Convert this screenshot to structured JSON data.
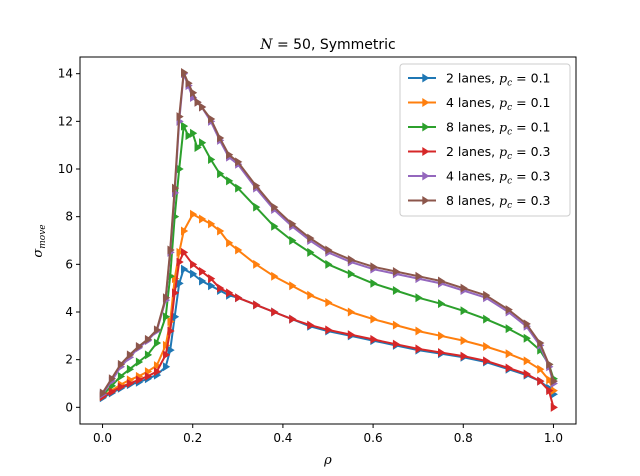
{
  "chart_data": {
    "type": "line",
    "title": "N = 50, Symmetric",
    "xlabel": "ρ",
    "ylabel": "σmove",
    "xlim": [
      -0.05,
      1.05
    ],
    "ylim": [
      -0.7,
      14.7
    ],
    "xticks": [
      0.0,
      0.2,
      0.4,
      0.6,
      0.8,
      1.0
    ],
    "xtick_labels": [
      "0.0",
      "0.2",
      "0.4",
      "0.6",
      "0.8",
      "1.0"
    ],
    "yticks": [
      0,
      2,
      4,
      6,
      8,
      10,
      12,
      14
    ],
    "ytick_labels": [
      "0",
      "2",
      "4",
      "6",
      "8",
      "10",
      "12",
      "14"
    ],
    "grid": false,
    "legend_position": "top-right",
    "marker": "triangle-right",
    "series": [
      {
        "name": "2 lanes, pc = 0.1",
        "name_main": "2 lanes, ",
        "name_sub": "c",
        "name_tail": " = 0.1",
        "color": "#1f77b4",
        "x": [
          0.0,
          0.02,
          0.04,
          0.06,
          0.08,
          0.1,
          0.12,
          0.14,
          0.15,
          0.16,
          0.17,
          0.18,
          0.2,
          0.22,
          0.24,
          0.26,
          0.28,
          0.3,
          0.34,
          0.38,
          0.42,
          0.46,
          0.5,
          0.55,
          0.6,
          0.65,
          0.7,
          0.75,
          0.8,
          0.85,
          0.9,
          0.94,
          0.97,
          0.99,
          1.0
        ],
        "y": [
          0.4,
          0.6,
          0.8,
          0.95,
          1.05,
          1.2,
          1.35,
          1.7,
          2.4,
          3.8,
          5.2,
          5.8,
          5.6,
          5.3,
          5.1,
          4.9,
          4.7,
          4.6,
          4.3,
          4.0,
          3.7,
          3.4,
          3.2,
          3.0,
          2.8,
          2.6,
          2.4,
          2.25,
          2.1,
          1.9,
          1.6,
          1.35,
          1.1,
          0.8,
          0.55
        ]
      },
      {
        "name": "4 lanes, pc = 0.1",
        "name_main": "4 lanes, ",
        "name_sub": "c",
        "name_tail": " = 0.1",
        "color": "#ff7f0e",
        "x": [
          0.0,
          0.02,
          0.04,
          0.06,
          0.08,
          0.1,
          0.12,
          0.14,
          0.15,
          0.16,
          0.17,
          0.18,
          0.2,
          0.22,
          0.24,
          0.26,
          0.28,
          0.3,
          0.34,
          0.38,
          0.42,
          0.46,
          0.5,
          0.55,
          0.6,
          0.65,
          0.7,
          0.75,
          0.8,
          0.85,
          0.9,
          0.94,
          0.97,
          0.99,
          1.0
        ],
        "y": [
          0.45,
          0.7,
          0.95,
          1.15,
          1.3,
          1.5,
          1.75,
          2.6,
          3.6,
          5.4,
          6.5,
          7.4,
          8.1,
          7.9,
          7.7,
          7.4,
          6.9,
          6.6,
          6.0,
          5.5,
          5.1,
          4.7,
          4.4,
          4.0,
          3.7,
          3.45,
          3.2,
          3.0,
          2.8,
          2.55,
          2.25,
          1.95,
          1.6,
          1.15,
          0.7
        ]
      },
      {
        "name": "8 lanes, pc = 0.1",
        "name_main": "8 lanes, ",
        "name_sub": "c",
        "name_tail": " = 0.1",
        "color": "#2ca02c",
        "x": [
          0.0,
          0.02,
          0.04,
          0.06,
          0.08,
          0.1,
          0.12,
          0.14,
          0.15,
          0.16,
          0.17,
          0.18,
          0.19,
          0.2,
          0.21,
          0.22,
          0.24,
          0.26,
          0.28,
          0.3,
          0.34,
          0.38,
          0.42,
          0.46,
          0.5,
          0.55,
          0.6,
          0.65,
          0.7,
          0.75,
          0.8,
          0.85,
          0.9,
          0.94,
          0.97,
          0.99,
          1.0
        ],
        "y": [
          0.5,
          0.9,
          1.3,
          1.6,
          1.9,
          2.2,
          2.7,
          3.8,
          5.5,
          8.0,
          10.0,
          11.8,
          11.4,
          11.5,
          10.9,
          11.1,
          10.4,
          9.8,
          9.5,
          9.2,
          8.4,
          7.6,
          7.0,
          6.5,
          6.0,
          5.6,
          5.2,
          4.9,
          4.6,
          4.35,
          4.05,
          3.7,
          3.3,
          2.9,
          2.4,
          1.8,
          1.2
        ]
      },
      {
        "name": "2 lanes, pc = 0.3",
        "name_main": "2 lanes, ",
        "name_sub": "c",
        "name_tail": " = 0.3",
        "color": "#d62728",
        "x": [
          0.0,
          0.02,
          0.04,
          0.06,
          0.08,
          0.1,
          0.12,
          0.14,
          0.15,
          0.16,
          0.17,
          0.18,
          0.2,
          0.22,
          0.24,
          0.26,
          0.28,
          0.3,
          0.34,
          0.38,
          0.42,
          0.46,
          0.5,
          0.55,
          0.6,
          0.65,
          0.7,
          0.75,
          0.8,
          0.85,
          0.9,
          0.94,
          0.97,
          0.99,
          1.0
        ],
        "y": [
          0.45,
          0.65,
          0.85,
          1.0,
          1.15,
          1.3,
          1.5,
          2.2,
          3.2,
          4.8,
          6.1,
          6.5,
          6.0,
          5.7,
          5.4,
          5.0,
          4.8,
          4.6,
          4.3,
          4.0,
          3.7,
          3.45,
          3.25,
          3.05,
          2.85,
          2.65,
          2.45,
          2.3,
          2.15,
          1.95,
          1.65,
          1.4,
          1.1,
          0.7,
          0.0
        ]
      },
      {
        "name": "4 lanes, pc = 0.3",
        "name_main": "4 lanes, ",
        "name_sub": "c",
        "name_tail": " = 0.3",
        "color": "#9467bd",
        "x": [
          0.0,
          0.02,
          0.04,
          0.06,
          0.08,
          0.1,
          0.12,
          0.14,
          0.15,
          0.16,
          0.17,
          0.18,
          0.19,
          0.2,
          0.21,
          0.22,
          0.24,
          0.26,
          0.28,
          0.3,
          0.34,
          0.38,
          0.42,
          0.46,
          0.5,
          0.55,
          0.6,
          0.65,
          0.7,
          0.75,
          0.8,
          0.85,
          0.9,
          0.94,
          0.97,
          0.99,
          1.0
        ],
        "y": [
          0.55,
          1.1,
          1.7,
          2.1,
          2.5,
          2.8,
          3.2,
          4.5,
          6.5,
          9.0,
          12.0,
          14.0,
          13.5,
          13.0,
          12.8,
          12.6,
          12.0,
          11.2,
          10.5,
          10.2,
          9.2,
          8.3,
          7.6,
          7.0,
          6.5,
          6.1,
          5.8,
          5.6,
          5.4,
          5.2,
          4.9,
          4.6,
          4.0,
          3.4,
          2.6,
          1.7,
          1.0
        ]
      },
      {
        "name": "8 lanes, pc = 0.3",
        "name_main": "8 lanes, ",
        "name_sub": "c",
        "name_tail": " = 0.3",
        "color": "#8c564b",
        "x": [
          0.0,
          0.02,
          0.04,
          0.06,
          0.08,
          0.1,
          0.12,
          0.14,
          0.15,
          0.16,
          0.17,
          0.18,
          0.19,
          0.2,
          0.21,
          0.22,
          0.24,
          0.26,
          0.28,
          0.3,
          0.34,
          0.38,
          0.42,
          0.46,
          0.5,
          0.55,
          0.6,
          0.65,
          0.7,
          0.75,
          0.8,
          0.85,
          0.9,
          0.94,
          0.97,
          0.99,
          1.0
        ],
        "y": [
          0.6,
          1.2,
          1.8,
          2.2,
          2.55,
          2.85,
          3.25,
          4.6,
          6.6,
          9.2,
          12.2,
          14.05,
          13.6,
          13.2,
          12.8,
          12.6,
          12.1,
          11.3,
          10.6,
          10.3,
          9.3,
          8.4,
          7.7,
          7.1,
          6.6,
          6.2,
          5.9,
          5.7,
          5.5,
          5.3,
          5.0,
          4.7,
          4.1,
          3.5,
          2.7,
          1.8,
          1.1
        ]
      }
    ]
  }
}
